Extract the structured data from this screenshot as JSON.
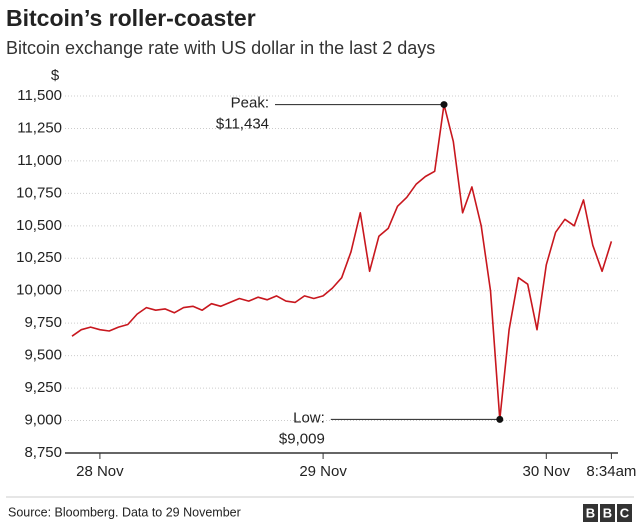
{
  "chart_data": {
    "type": "line",
    "title": "Bitcoin’s roller-coaster",
    "subtitle": "Bitcoin exchange rate with US dollar in the last 2 days",
    "y_unit": "$",
    "categories": [
      null,
      null,
      null,
      "28 Nov",
      null,
      null,
      null,
      null,
      null,
      null,
      null,
      null,
      null,
      null,
      null,
      null,
      null,
      null,
      null,
      null,
      null,
      null,
      null,
      null,
      null,
      null,
      null,
      "29 Nov",
      null,
      null,
      null,
      null,
      null,
      null,
      null,
      null,
      null,
      null,
      null,
      null,
      null,
      null,
      null,
      null,
      null,
      null,
      null,
      null,
      null,
      null,
      null,
      "30 Nov",
      null,
      null,
      null,
      null,
      null,
      null,
      "8:34am"
    ],
    "series": [
      {
        "name": "Bitcoin",
        "color": "#c8171e",
        "values": [
          9650,
          9700,
          9720,
          9700,
          9690,
          9720,
          9740,
          9820,
          9870,
          9850,
          9860,
          9830,
          9870,
          9880,
          9850,
          9900,
          9880,
          9910,
          9940,
          9920,
          9950,
          9930,
          9960,
          9920,
          9910,
          9960,
          9940,
          9960,
          10020,
          10100,
          10300,
          10600,
          10150,
          10420,
          10480,
          10650,
          10720,
          10820,
          10880,
          10920,
          11434,
          11150,
          10600,
          10800,
          10500,
          10000,
          9009,
          9700,
          10100,
          10050,
          9700,
          10200,
          10450,
          10550,
          10500,
          10700,
          10350,
          10150,
          10380
        ]
      }
    ],
    "ylim": [
      8750,
      11500
    ],
    "yticks": [
      {
        "value": 8750,
        "label": "8,750"
      },
      {
        "value": 9000,
        "label": "9,000"
      },
      {
        "value": 9250,
        "label": "9,250"
      },
      {
        "value": 9500,
        "label": "9,500"
      },
      {
        "value": 9750,
        "label": "9,750"
      },
      {
        "value": 10000,
        "label": "10,000"
      },
      {
        "value": 10250,
        "label": "10,250"
      },
      {
        "value": 10500,
        "label": "10,500"
      },
      {
        "value": 10750,
        "label": "10,750"
      },
      {
        "value": 11000,
        "label": "11,000"
      },
      {
        "value": 11250,
        "label": "11,250"
      },
      {
        "value": 11500,
        "label": "11,500"
      }
    ],
    "grid": true,
    "annotations": [
      {
        "text": "Peak:",
        "label": "$11,434",
        "value": 11434
      },
      {
        "text": "Low:",
        "label": "$9,009",
        "value": 9009
      }
    ],
    "source": "Source: Bloomberg. Data to 29 November",
    "logo": [
      "B",
      "B",
      "C"
    ]
  }
}
